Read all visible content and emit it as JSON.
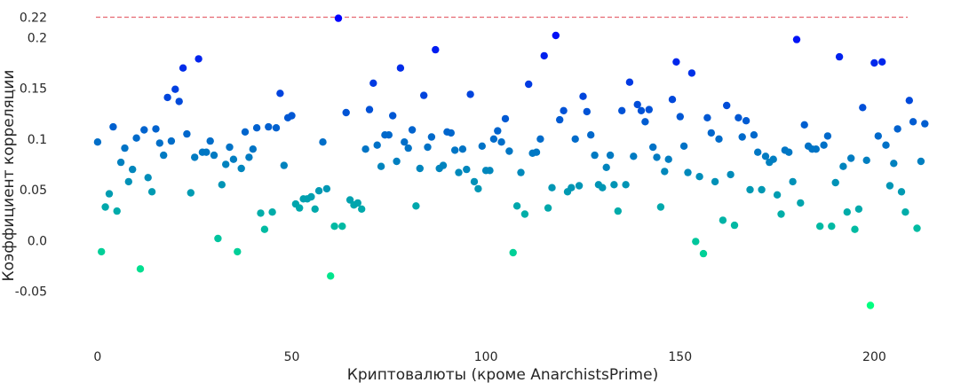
{
  "chart_data": {
    "type": "scatter",
    "xlabel": "Криптовалюты (кроме AnarchistsPrime)",
    "ylabel": "Коэффициент корреляции",
    "xlim": [
      -5,
      215
    ],
    "ylim": [
      -0.095,
      0.23
    ],
    "grid": false,
    "x_ticks": [
      {
        "value": 0,
        "label": "0"
      },
      {
        "value": 50,
        "label": "50"
      },
      {
        "value": 100,
        "label": "100"
      },
      {
        "value": 150,
        "label": "150"
      },
      {
        "value": 200,
        "label": "200"
      }
    ],
    "y_ticks": [
      {
        "value": 0.22,
        "label": "0.22"
      },
      {
        "value": 0.2,
        "label": "0.2"
      },
      {
        "value": 0.15,
        "label": "0.15"
      },
      {
        "value": 0.1,
        "label": "0.1"
      },
      {
        "value": 0.05,
        "label": "0.05"
      },
      {
        "value": 0.0,
        "label": "0.0"
      },
      {
        "value": -0.05,
        "label": "-0.05"
      }
    ],
    "reference_line": {
      "y": 0.22,
      "style": "dashed",
      "color": "#e8737c"
    },
    "colormap": {
      "name": "winter",
      "low_color": "#00ff80",
      "high_color": "#0000ff"
    },
    "x": [
      0,
      1,
      2,
      3,
      4,
      5,
      6,
      7,
      8,
      9,
      10,
      11,
      12,
      13,
      14,
      15,
      16,
      17,
      18,
      19,
      20,
      21,
      22,
      23,
      24,
      25,
      26,
      27,
      28,
      29,
      30,
      31,
      32,
      33,
      34,
      35,
      36,
      37,
      38,
      39,
      40,
      41,
      42,
      43,
      44,
      45,
      46,
      47,
      48,
      49,
      50,
      51,
      52,
      53,
      54,
      55,
      56,
      57,
      58,
      59,
      60,
      61,
      62,
      63,
      64,
      65,
      66,
      67,
      68,
      69,
      70,
      71,
      72,
      73,
      74,
      75,
      76,
      77,
      78,
      79,
      80,
      81,
      82,
      83,
      84,
      85,
      86,
      87,
      88,
      89,
      90,
      91,
      92,
      93,
      94,
      95,
      96,
      97,
      98,
      99,
      100,
      101,
      102,
      103,
      104,
      105,
      106,
      107,
      108,
      109,
      110,
      111,
      112,
      113,
      114,
      115,
      116,
      117,
      118,
      119,
      120,
      121,
      122,
      123,
      124,
      125,
      126,
      127,
      128,
      129,
      130,
      131,
      132,
      133,
      134,
      135,
      136,
      137,
      138,
      139,
      140,
      141,
      142,
      143,
      144,
      145,
      146,
      147,
      148,
      149,
      150,
      151,
      152,
      153,
      154,
      155,
      156,
      157,
      158,
      159,
      160,
      161,
      162,
      163,
      164,
      165,
      166,
      167,
      168,
      169,
      170,
      171,
      172,
      173,
      174,
      175,
      176,
      177,
      178,
      179,
      180,
      181,
      182,
      183,
      184,
      185,
      186,
      187,
      188,
      189,
      190,
      191,
      192,
      193,
      194,
      195,
      196,
      197,
      198,
      199,
      200,
      201,
      202,
      203,
      204,
      205,
      206,
      207,
      208,
      209,
      210,
      211,
      212,
      213
    ],
    "y": [
      0.097,
      -0.011,
      0.033,
      0.046,
      0.112,
      0.029,
      0.077,
      0.091,
      0.058,
      0.07,
      0.101,
      -0.028,
      0.109,
      0.062,
      0.048,
      0.11,
      0.096,
      0.084,
      0.141,
      0.098,
      0.149,
      0.137,
      0.17,
      0.105,
      0.047,
      0.082,
      0.179,
      0.087,
      0.087,
      0.098,
      0.084,
      0.002,
      0.055,
      0.075,
      0.092,
      0.08,
      -0.011,
      0.071,
      0.107,
      0.082,
      0.09,
      0.111,
      0.027,
      0.011,
      0.112,
      0.028,
      0.111,
      0.145,
      0.074,
      0.121,
      0.123,
      0.036,
      0.032,
      0.041,
      0.041,
      0.043,
      0.031,
      0.049,
      0.097,
      0.051,
      -0.035,
      0.014,
      0.219,
      0.014,
      0.126,
      0.04,
      0.035,
      0.037,
      0.031,
      0.09,
      0.129,
      0.155,
      0.094,
      0.073,
      0.104,
      0.104,
      0.123,
      0.078,
      0.17,
      0.097,
      0.091,
      0.109,
      0.034,
      0.071,
      0.143,
      0.092,
      0.102,
      0.188,
      0.071,
      0.074,
      0.107,
      0.106,
      0.089,
      0.067,
      0.09,
      0.07,
      0.144,
      0.058,
      0.051,
      0.093,
      0.069,
      0.069,
      0.1,
      0.108,
      0.097,
      0.12,
      0.088,
      -0.012,
      0.034,
      0.067,
      0.026,
      0.154,
      0.086,
      0.087,
      0.1,
      0.182,
      0.032,
      0.052,
      0.202,
      0.119,
      0.128,
      0.048,
      0.052,
      0.1,
      0.054,
      0.142,
      0.127,
      0.104,
      0.084,
      0.055,
      0.052,
      0.072,
      0.084,
      0.055,
      0.029,
      0.128,
      0.055,
      0.156,
      0.083,
      0.134,
      0.128,
      0.117,
      0.129,
      0.092,
      0.082,
      0.033,
      0.068,
      0.08,
      0.139,
      0.176,
      0.122,
      0.093,
      0.067,
      0.165,
      -0.001,
      0.063,
      -0.013,
      0.121,
      0.106,
      0.058,
      0.1,
      0.02,
      0.133,
      0.065,
      0.015,
      0.121,
      0.102,
      0.118,
      0.05,
      0.104,
      0.087,
      0.05,
      0.083,
      0.077,
      0.08,
      0.045,
      0.026,
      0.089,
      0.087,
      0.058,
      0.198,
      0.037,
      0.114,
      0.093,
      0.09,
      0.09,
      0.014,
      0.094,
      0.103,
      0.014,
      0.057,
      0.181,
      0.073,
      0.028,
      0.081,
      0.011,
      0.031,
      0.131,
      0.079,
      -0.064,
      0.175,
      0.103,
      0.176,
      0.094,
      0.054,
      0.076,
      0.11,
      0.048,
      0.028,
      0.138,
      0.117,
      0.012,
      0.078,
      0.115
    ]
  }
}
